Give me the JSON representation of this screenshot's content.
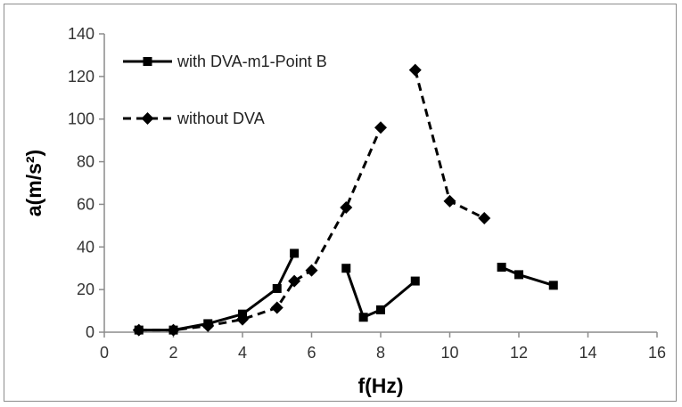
{
  "chart_data": {
    "type": "line",
    "xlabel": "f(Hz)",
    "ylabel": "a(m/s²)",
    "xlim": [
      0,
      16
    ],
    "ylim": [
      0,
      140
    ],
    "x_ticks": [
      0,
      2,
      4,
      6,
      8,
      10,
      12,
      14,
      16
    ],
    "y_ticks": [
      0,
      20,
      40,
      60,
      80,
      100,
      120,
      140
    ],
    "grid": false,
    "legend_position": "top-left",
    "series": [
      {
        "name": "with DVA-m1-Point B",
        "line_style": "solid",
        "marker": "square",
        "color": "#000000",
        "segments": [
          [
            [
              1,
              1
            ],
            [
              2,
              1
            ],
            [
              3,
              4
            ],
            [
              4,
              8.5
            ],
            [
              5,
              20.5
            ],
            [
              5.5,
              37
            ]
          ],
          [
            [
              7,
              30
            ],
            [
              7.5,
              7
            ],
            [
              8,
              10.5
            ],
            [
              9,
              24
            ]
          ],
          [
            [
              11.5,
              30.5
            ],
            [
              12,
              27
            ],
            [
              13,
              22
            ]
          ]
        ]
      },
      {
        "name": "without DVA",
        "line_style": "dashed",
        "marker": "diamond",
        "color": "#000000",
        "segments": [
          [
            [
              1,
              1
            ],
            [
              2,
              1
            ],
            [
              3,
              3
            ],
            [
              4,
              6
            ],
            [
              5,
              11.5
            ],
            [
              5.5,
              24
            ],
            [
              6,
              29
            ],
            [
              7,
              58.5
            ],
            [
              8,
              96
            ]
          ],
          [
            [
              9,
              123
            ],
            [
              10,
              61.5
            ],
            [
              11,
              53.5
            ]
          ]
        ]
      }
    ]
  }
}
